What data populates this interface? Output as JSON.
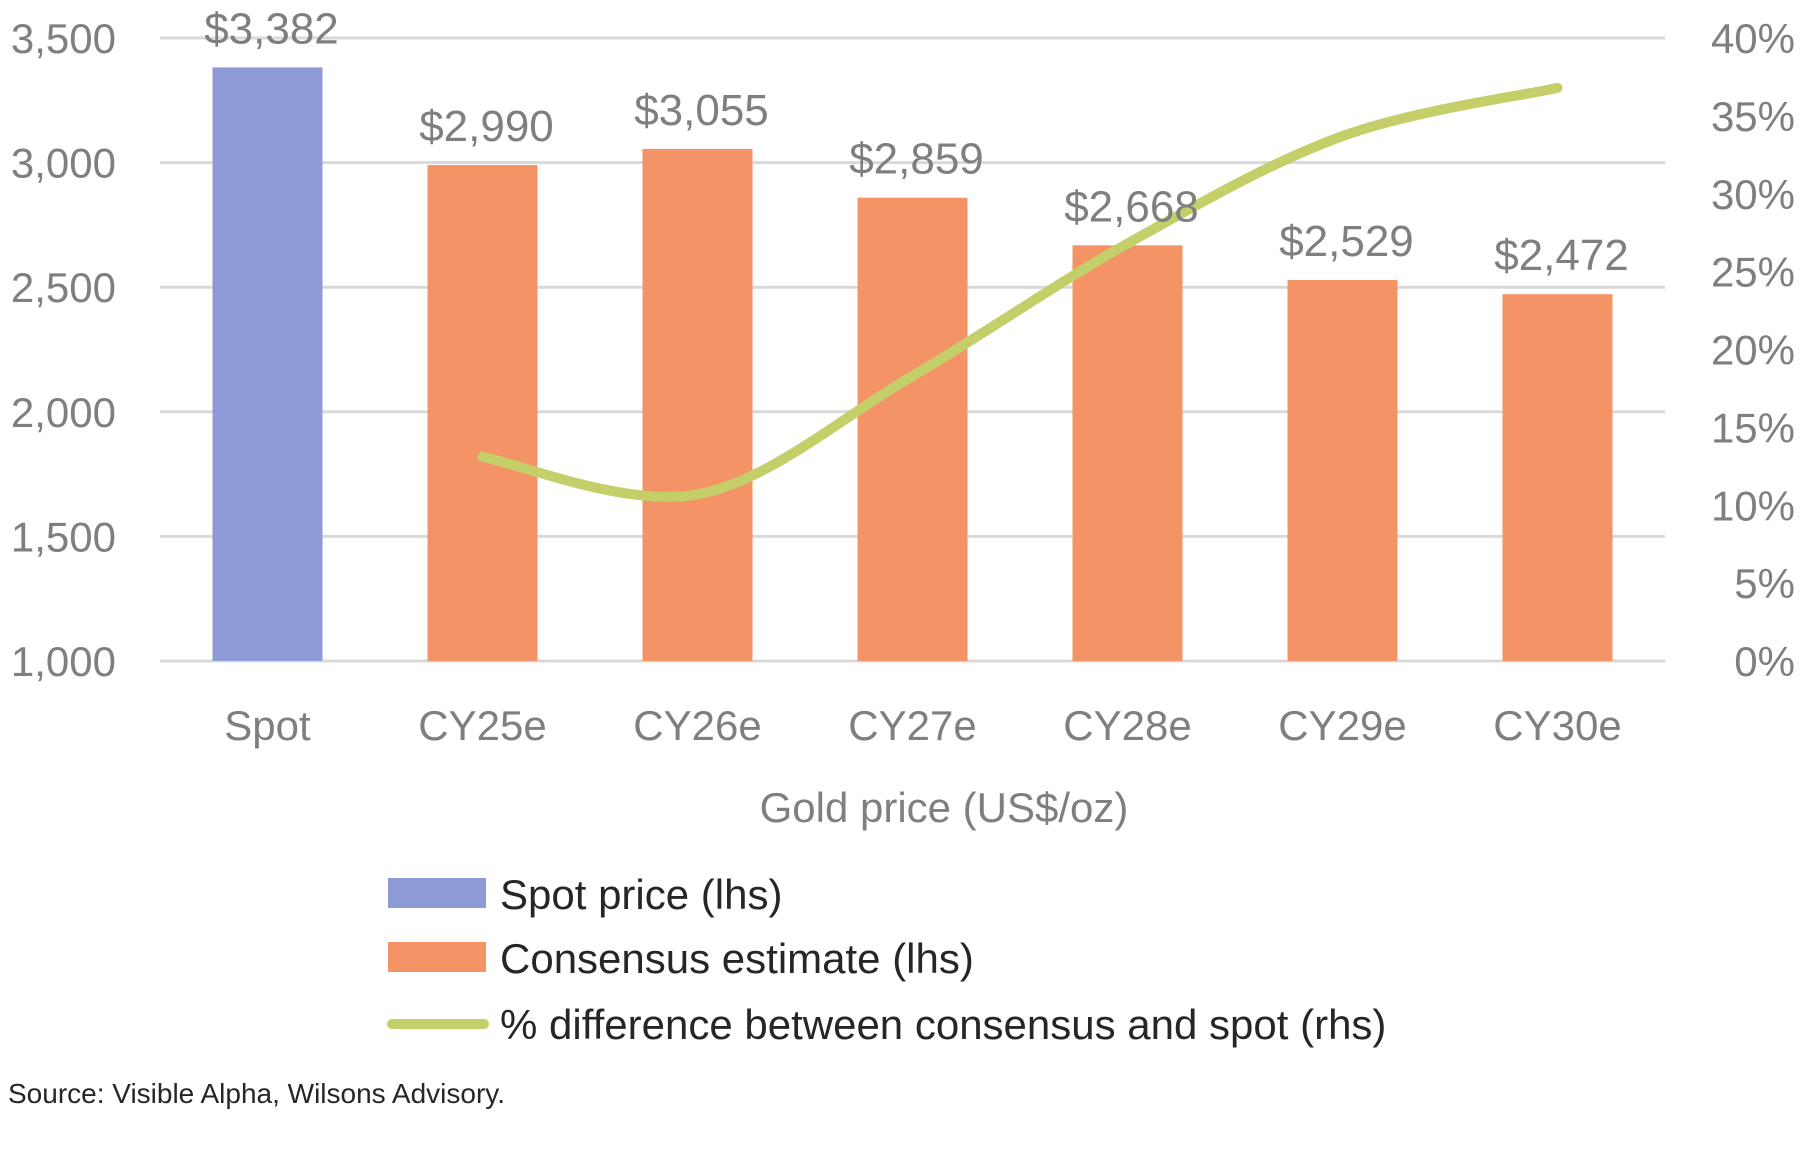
{
  "chart_data": {
    "type": "bar",
    "categories": [
      "Spot",
      "CY25e",
      "CY26e",
      "CY27e",
      "CY28e",
      "CY29e",
      "CY30e"
    ],
    "xlabel": "Gold price (US$/oz)",
    "y_left": {
      "ylim": [
        1000,
        3500
      ],
      "ticks": [
        1000,
        1500,
        2000,
        2500,
        3000,
        3500
      ],
      "tick_labels": [
        "1,000",
        "1,500",
        "2,000",
        "2,500",
        "3,000",
        "3,500"
      ]
    },
    "y_right": {
      "ylim": [
        0,
        40
      ],
      "ticks": [
        0,
        5,
        10,
        15,
        20,
        25,
        30,
        35,
        40
      ],
      "tick_labels": [
        "0%",
        "5%",
        "10%",
        "15%",
        "20%",
        "25%",
        "30%",
        "35%",
        "40%"
      ]
    },
    "grid": true,
    "legend_position": "bottom",
    "series": [
      {
        "name": "Spot price (lhs)",
        "kind": "bar",
        "axis": "left",
        "color": "#8e9ad6",
        "values": [
          3382,
          null,
          null,
          null,
          null,
          null,
          null
        ],
        "labels": [
          "$3,382",
          null,
          null,
          null,
          null,
          null,
          null
        ]
      },
      {
        "name": "Consensus estimate (lhs)",
        "kind": "bar",
        "axis": "left",
        "color": "#f39366",
        "values": [
          null,
          2990,
          3055,
          2859,
          2668,
          2529,
          2472
        ],
        "labels": [
          null,
          "$2,990",
          "$3,055",
          "$2,859",
          "$2,668",
          "$2,529",
          "$2,472"
        ]
      },
      {
        "name": "% difference between consensus and spot (rhs)",
        "kind": "line",
        "axis": "right",
        "color": "#c4cf6a",
        "values": [
          null,
          13.1,
          10.7,
          18.3,
          26.8,
          33.7,
          36.8
        ]
      }
    ]
  },
  "source_text": "Source: Visible Alpha, Wilsons Advisory."
}
